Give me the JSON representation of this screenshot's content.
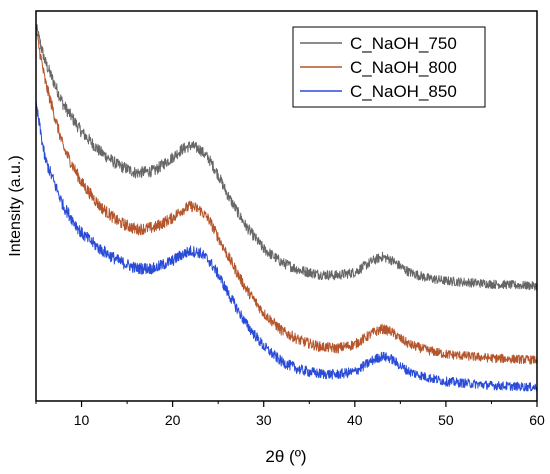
{
  "chart_data": {
    "type": "line",
    "title": "",
    "xlabel": "2θ (º)",
    "ylabel": "Intensity (a.u.)",
    "xlim": [
      5,
      60
    ],
    "ylim": [
      0,
      1
    ],
    "x_ticks": [
      10,
      20,
      30,
      40,
      50,
      60
    ],
    "x_tick_labels": [
      "10",
      "20",
      "30",
      "40",
      "50",
      "60"
    ],
    "y_ticks_shown": false,
    "grid": false,
    "legend_position": "top-right",
    "series": [
      {
        "name": "C_NaOH_750",
        "color": "#666666",
        "x": [
          5,
          6,
          8,
          10,
          12,
          14,
          16,
          18,
          20,
          21,
          22,
          23,
          24,
          25,
          26,
          28,
          30,
          32,
          34,
          36,
          38,
          40,
          41,
          42,
          43,
          44,
          45,
          46,
          48,
          50,
          55,
          60
        ],
        "y": [
          0.96,
          0.87,
          0.76,
          0.69,
          0.64,
          0.605,
          0.585,
          0.59,
          0.625,
          0.645,
          0.655,
          0.645,
          0.62,
          0.58,
          0.53,
          0.45,
          0.39,
          0.355,
          0.335,
          0.325,
          0.322,
          0.33,
          0.345,
          0.36,
          0.37,
          0.362,
          0.345,
          0.33,
          0.315,
          0.308,
          0.3,
          0.295
        ]
      },
      {
        "name": "C_NaOH_800",
        "color": "#b5552b",
        "x": [
          5,
          6,
          8,
          10,
          12,
          14,
          16,
          18,
          20,
          21,
          22,
          23,
          24,
          25,
          26,
          28,
          30,
          32,
          34,
          36,
          38,
          40,
          41,
          42,
          43,
          44,
          45,
          46,
          48,
          50,
          55,
          60
        ],
        "y": [
          0.95,
          0.82,
          0.65,
          0.56,
          0.5,
          0.46,
          0.44,
          0.445,
          0.47,
          0.49,
          0.5,
          0.49,
          0.465,
          0.42,
          0.375,
          0.29,
          0.225,
          0.18,
          0.155,
          0.14,
          0.135,
          0.145,
          0.16,
          0.175,
          0.185,
          0.178,
          0.16,
          0.145,
          0.13,
          0.12,
          0.11,
          0.105
        ]
      },
      {
        "name": "C_NaOH_850",
        "color": "#2a4bd7",
        "x": [
          5,
          6,
          8,
          10,
          12,
          14,
          16,
          18,
          20,
          21,
          22,
          23,
          24,
          25,
          26,
          28,
          30,
          32,
          34,
          36,
          38,
          40,
          41,
          42,
          43,
          44,
          45,
          46,
          48,
          50,
          55,
          60
        ],
        "y": [
          0.76,
          0.62,
          0.5,
          0.43,
          0.39,
          0.36,
          0.34,
          0.34,
          0.36,
          0.375,
          0.385,
          0.38,
          0.36,
          0.325,
          0.28,
          0.2,
          0.14,
          0.1,
          0.08,
          0.07,
          0.068,
          0.075,
          0.09,
          0.105,
          0.115,
          0.108,
          0.09,
          0.075,
          0.06,
          0.05,
          0.04,
          0.035
        ]
      }
    ]
  }
}
